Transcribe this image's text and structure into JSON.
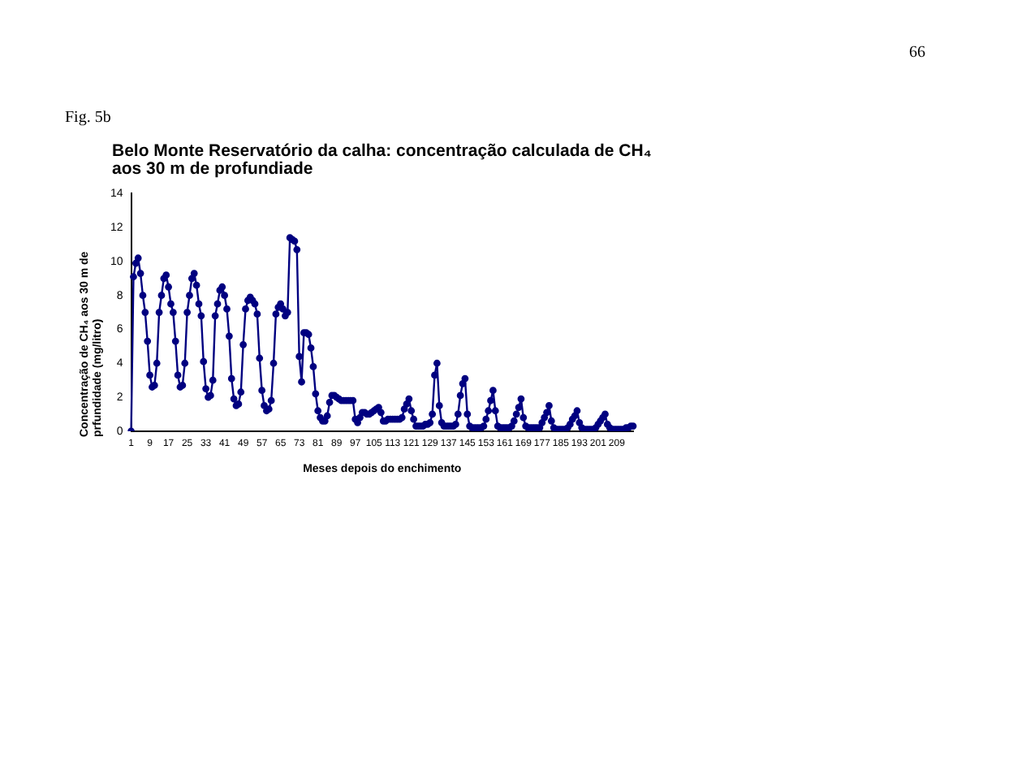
{
  "chart_data": {
    "type": "line",
    "title": "Belo Monte  Reservatório da calha: concentração calculada de CH₄ aos 30 m de profundiade",
    "xlabel": "Meses depois do enchimento",
    "ylabel": "Concentração de CH₄ aos 30 m de prfundidade (mg/litro)",
    "annotations": [
      "66",
      "Fig. 5b"
    ],
    "categories": [
      "1",
      null,
      null,
      null,
      null,
      null,
      null,
      null,
      "9",
      null,
      null,
      null,
      null,
      null,
      null,
      null,
      "17",
      null,
      null,
      null,
      null,
      null,
      null,
      null,
      "25",
      null,
      null,
      null,
      null,
      null,
      null,
      null,
      "33",
      null,
      null,
      null,
      null,
      null,
      null,
      null,
      "41",
      null,
      null,
      null,
      null,
      null,
      null,
      null,
      "49",
      null,
      null,
      null,
      null,
      null,
      null,
      null,
      "57",
      null,
      null,
      null,
      null,
      null,
      null,
      null,
      "65",
      null,
      null,
      null,
      null,
      null,
      null,
      null,
      "73",
      null,
      null,
      null,
      null,
      null,
      null,
      null,
      "81",
      null,
      null,
      null,
      null,
      null,
      null,
      null,
      "89",
      null,
      null,
      null,
      null,
      null,
      null,
      null,
      "97",
      null,
      null,
      null,
      null,
      null,
      null,
      null,
      "105",
      null,
      null,
      null,
      null,
      null,
      null,
      null,
      "113",
      null,
      null,
      null,
      null,
      null,
      null,
      null,
      "121",
      null,
      null,
      null,
      null,
      null,
      null,
      null,
      "129",
      null,
      null,
      null,
      null,
      null,
      null,
      null,
      "137",
      null,
      null,
      null,
      null,
      null,
      null,
      null,
      "145",
      null,
      null,
      null,
      null,
      null,
      null,
      null,
      "153",
      null,
      null,
      null,
      null,
      null,
      null,
      null,
      "161",
      null,
      null,
      null,
      null,
      null,
      null,
      null,
      "169",
      null,
      null,
      null,
      null,
      null,
      null,
      null,
      "177",
      null,
      null,
      null,
      null,
      null,
      null,
      null,
      "185",
      null,
      null,
      null,
      null,
      null,
      null,
      null,
      "193",
      null,
      null,
      null,
      null,
      null,
      null,
      null,
      "201",
      null,
      null,
      null,
      null,
      null,
      null,
      null,
      "209",
      null,
      null,
      null,
      null,
      null,
      null,
      null
    ],
    "series": [
      {
        "color": "#000080",
        "values": [
          0,
          9.1,
          9.9,
          10.2,
          9.3,
          8.0,
          7.0,
          5.3,
          3.3,
          2.6,
          2.7,
          4.0,
          7.0,
          8.0,
          9.0,
          9.2,
          8.5,
          7.5,
          7.0,
          5.3,
          3.3,
          2.6,
          2.7,
          4.0,
          7.0,
          8.0,
          9.0,
          9.3,
          8.6,
          7.5,
          6.8,
          4.1,
          2.5,
          2.0,
          2.1,
          3.0,
          6.8,
          7.5,
          8.3,
          8.5,
          8.0,
          7.2,
          5.6,
          3.1,
          1.9,
          1.5,
          1.6,
          2.3,
          5.1,
          7.2,
          7.7,
          7.9,
          7.7,
          7.5,
          6.9,
          4.3,
          2.4,
          1.5,
          1.2,
          1.3,
          1.8,
          4.0,
          6.9,
          7.3,
          7.5,
          7.2,
          6.8,
          7.0,
          11.4,
          11.3,
          11.2,
          10.7,
          4.4,
          2.9,
          5.8,
          5.8,
          5.7,
          4.9,
          3.8,
          2.2,
          1.2,
          0.8,
          0.6,
          0.6,
          0.9,
          1.7,
          2.1,
          2.1,
          2.0,
          1.9,
          1.8,
          1.8,
          1.8,
          1.8,
          1.8,
          1.8,
          0.7,
          0.5,
          0.8,
          1.1,
          1.1,
          1.0,
          1.0,
          1.1,
          1.2,
          1.3,
          1.4,
          1.1,
          0.6,
          0.6,
          0.7,
          0.7,
          0.7,
          0.7,
          0.7,
          0.7,
          0.8,
          1.3,
          1.6,
          1.9,
          1.2,
          0.7,
          0.3,
          0.3,
          0.3,
          0.3,
          0.4,
          0.4,
          0.5,
          1.0,
          3.3,
          4.0,
          1.5,
          0.5,
          0.3,
          0.3,
          0.3,
          0.3,
          0.3,
          0.4,
          1.0,
          2.1,
          2.8,
          3.1,
          1.0,
          0.3,
          0.2,
          0.2,
          0.2,
          0.2,
          0.2,
          0.3,
          0.7,
          1.2,
          1.8,
          2.4,
          1.2,
          0.3,
          0.2,
          0.2,
          0.2,
          0.2,
          0.2,
          0.3,
          0.6,
          1.0,
          1.4,
          1.9,
          0.8,
          0.3,
          0.2,
          0.2,
          0.2,
          0.2,
          0.2,
          0.2,
          0.5,
          0.8,
          1.1,
          1.5,
          0.6,
          0.2,
          0.1,
          0.1,
          0.1,
          0.1,
          0.1,
          0.2,
          0.4,
          0.7,
          0.9,
          1.2,
          0.5,
          0.2,
          0.1,
          0.1,
          0.1,
          0.1,
          0.1,
          0.2,
          0.4,
          0.6,
          0.8,
          1.0,
          0.4,
          0.2,
          0.1,
          0.1,
          0.1,
          0.1,
          0.1,
          0.1,
          0.2,
          0.2,
          0.3,
          0.3
        ]
      }
    ],
    "ylim": [
      0,
      14
    ],
    "yticks": [
      0,
      2,
      4,
      6,
      8,
      10,
      12,
      14
    ],
    "grid": false,
    "legend": false,
    "marker": "circle",
    "line_style": "solid"
  }
}
